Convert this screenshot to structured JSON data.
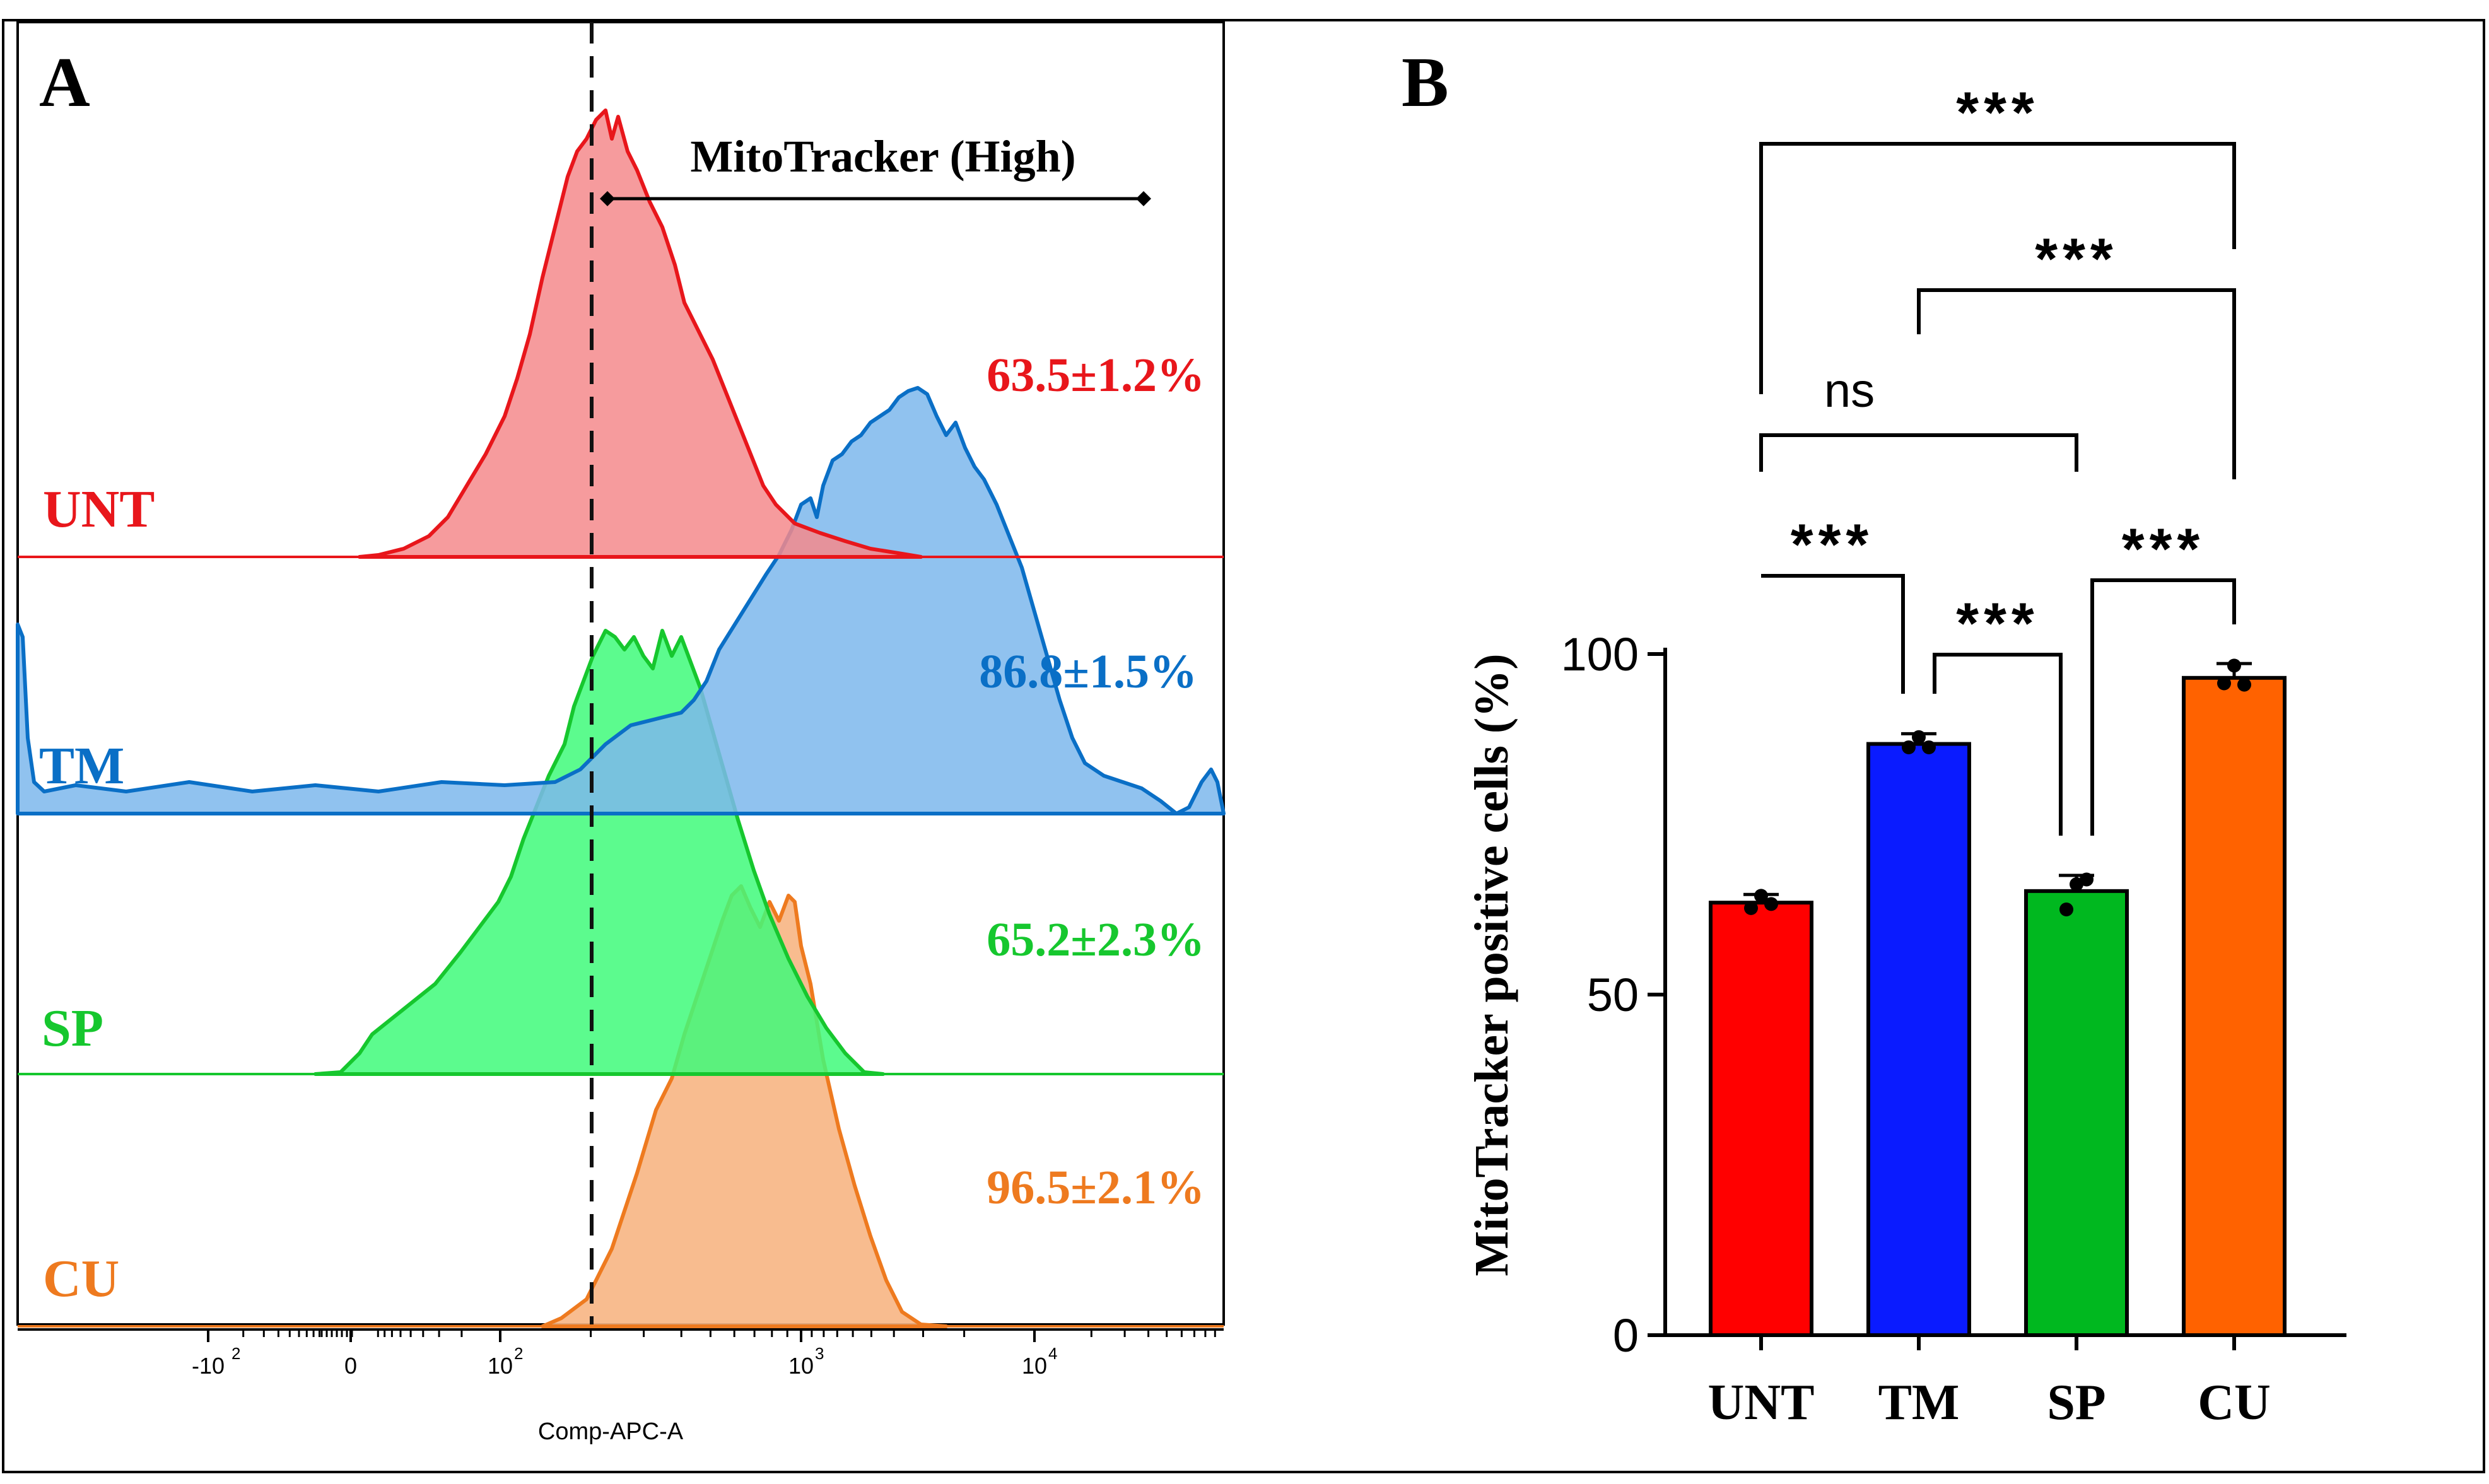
{
  "panel_a": {
    "label": "A",
    "gate_label": "MitoTracker (High)",
    "x_axis_title": "Comp-APC-A",
    "x_tick_labels": [
      "-10",
      "2",
      "0",
      "10",
      "2",
      "10",
      "3",
      "10",
      "4"
    ],
    "groups": [
      {
        "name": "UNT",
        "percent_label": "63.5±1.2%",
        "color": "#e8161b",
        "fill": "#f4898c"
      },
      {
        "name": "TM",
        "percent_label": "86.8±1.5%",
        "color": "#0a6fc6",
        "fill": "#7db7ec"
      },
      {
        "name": "SP",
        "percent_label": "65.2±2.3%",
        "color": "#16c72e",
        "fill": "#3ffa7a"
      },
      {
        "name": "CU",
        "percent_label": "96.5±2.1%",
        "color": "#ee7a1f",
        "fill": "#f7b583"
      }
    ]
  },
  "chart_data": [
    {
      "type": "histogram",
      "title": "A",
      "xlabel": "Comp-APC-A",
      "ylabel": "",
      "xscale": "biexponential",
      "x_tick_labels": [
        "-10^2",
        "0",
        "10^2",
        "10^3",
        "10^4"
      ],
      "gate": {
        "label": "MitoTracker (High)",
        "threshold": "~2x10^2"
      },
      "series": [
        {
          "name": "UNT",
          "percent_positive": "63.5±1.2%"
        },
        {
          "name": "TM",
          "percent_positive": "86.8±1.5%"
        },
        {
          "name": "SP",
          "percent_positive": "65.2±2.3%"
        },
        {
          "name": "CU",
          "percent_positive": "96.5±2.1%"
        }
      ]
    },
    {
      "type": "bar",
      "title": "B",
      "categories": [
        "UNT",
        "TM",
        "SP",
        "CU"
      ],
      "values": [
        63.5,
        86.8,
        65.2,
        96.5
      ],
      "errors": [
        1.2,
        1.5,
        2.3,
        2.1
      ],
      "points": [
        [
          64.5,
          62.7,
          63.3
        ],
        [
          87.8,
          86.3,
          86.3
        ],
        [
          66.2,
          62.5,
          66.9
        ],
        [
          98.3,
          95.7,
          95.5
        ]
      ],
      "colors": [
        "#ff0000",
        "#0a1bff",
        "#00b81f",
        "#ff6200"
      ],
      "xlabel": "",
      "ylabel": "MitoTracker positive cells (%)",
      "ylim": [
        0,
        100
      ],
      "yticks": [
        0,
        50,
        100
      ],
      "ytick_labels": [
        "0",
        "50",
        "100"
      ],
      "significance": [
        {
          "a": 0,
          "b": 1,
          "label": "***"
        },
        {
          "a": 1,
          "b": 2,
          "label": "***"
        },
        {
          "a": 2,
          "b": 3,
          "label": "***"
        },
        {
          "a": 0,
          "b": 2,
          "label": "ns"
        },
        {
          "a": 1,
          "b": 3,
          "label": "***"
        },
        {
          "a": 0,
          "b": 3,
          "label": "***"
        }
      ]
    }
  ]
}
